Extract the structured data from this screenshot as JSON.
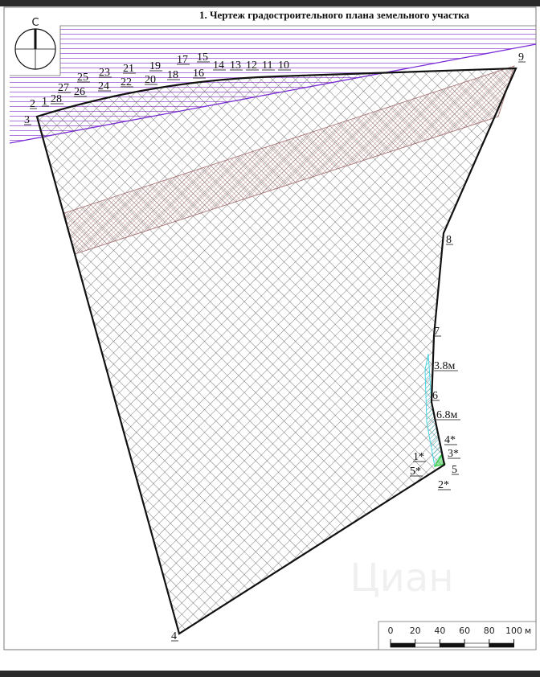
{
  "title": "1. Чертеж градостроительного плана земельного участка",
  "compass": {
    "north_label": "С"
  },
  "point_labels": [
    "2",
    "1",
    "28",
    "27",
    "26",
    "25",
    "24",
    "23",
    "22",
    "21",
    "20",
    "19",
    "18",
    "17",
    "16",
    "15",
    "14",
    "13",
    "12",
    "11",
    "10",
    "3",
    "9",
    "8",
    "7",
    "3.8м",
    "6",
    "6.8м",
    "4*",
    "3*",
    "1*",
    "5*",
    "5",
    "2*",
    "4"
  ],
  "scale_bar": {
    "ticks": [
      "0",
      "20",
      "40",
      "60",
      "80",
      "100"
    ],
    "unit": "м"
  },
  "watermark": "Циан",
  "colors": {
    "boundary": "#111111",
    "restriction_hatch": "#9b59d0",
    "purple_line": "#7a2ad8",
    "band": "#a06a6a",
    "strip": "#49d6e0",
    "marker": "#2ecc40"
  }
}
